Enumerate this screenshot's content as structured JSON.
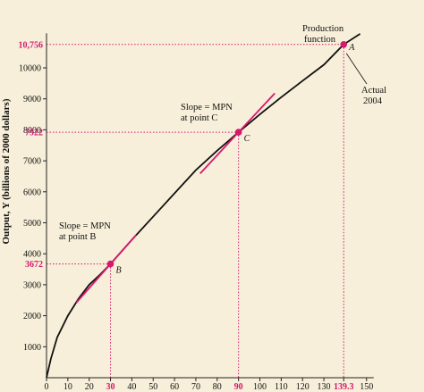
{
  "chart_data": {
    "type": "line",
    "ylabel": "Output, Y (billions of 2000 dollars)",
    "xlim": [
      0,
      150
    ],
    "ylim": [
      0,
      11000
    ],
    "x_ticks": [
      "0",
      "10",
      "20",
      "30",
      "40",
      "50",
      "60",
      "70",
      "80",
      "90",
      "100",
      "110",
      "120",
      "130",
      "139.3",
      "150"
    ],
    "y_ticks": [
      "1000",
      "2000",
      "3000",
      "4000",
      "5000",
      "6000",
      "7000",
      "8000",
      "9000",
      "10000"
    ],
    "highlight_color": "#d6186f",
    "series": [
      {
        "name": "Production function",
        "points": [
          [
            0,
            0
          ],
          [
            2,
            600
          ],
          [
            5,
            1300
          ],
          [
            10,
            2000
          ],
          [
            15,
            2550
          ],
          [
            20,
            3000
          ],
          [
            25,
            3320
          ],
          [
            30,
            3672
          ],
          [
            40,
            4450
          ],
          [
            50,
            5200
          ],
          [
            60,
            5950
          ],
          [
            70,
            6700
          ],
          [
            80,
            7330
          ],
          [
            90,
            7922
          ],
          [
            100,
            8500
          ],
          [
            110,
            9050
          ],
          [
            120,
            9580
          ],
          [
            130,
            10100
          ],
          [
            139.3,
            10756
          ],
          [
            147,
            11100
          ]
        ]
      }
    ],
    "points": [
      {
        "id": "A",
        "x": 139.3,
        "y": 10756,
        "x_label": "139.3",
        "y_label": "10,756"
      },
      {
        "id": "C",
        "x": 90,
        "y": 7922,
        "x_label": "90",
        "y_label": "7922"
      },
      {
        "id": "B",
        "x": 30,
        "y": 3672,
        "x_label": "30",
        "y_label": "3672"
      }
    ],
    "tangents": [
      {
        "at": "C",
        "x0": 72,
        "x1": 107,
        "slope": 74
      },
      {
        "at": "B",
        "x0": 14,
        "x1": 42,
        "slope": 78
      }
    ],
    "annotations": [
      {
        "id": "production-function-label",
        "lines": [
          "Production",
          "function"
        ]
      },
      {
        "id": "actual-2004-label",
        "lines": [
          "Actual",
          "2004"
        ]
      },
      {
        "id": "slope-c-label",
        "lines": [
          "Slope = MPN",
          "at point C"
        ]
      },
      {
        "id": "slope-b-label",
        "lines": [
          "Slope = MPN",
          "at point B"
        ]
      }
    ]
  }
}
